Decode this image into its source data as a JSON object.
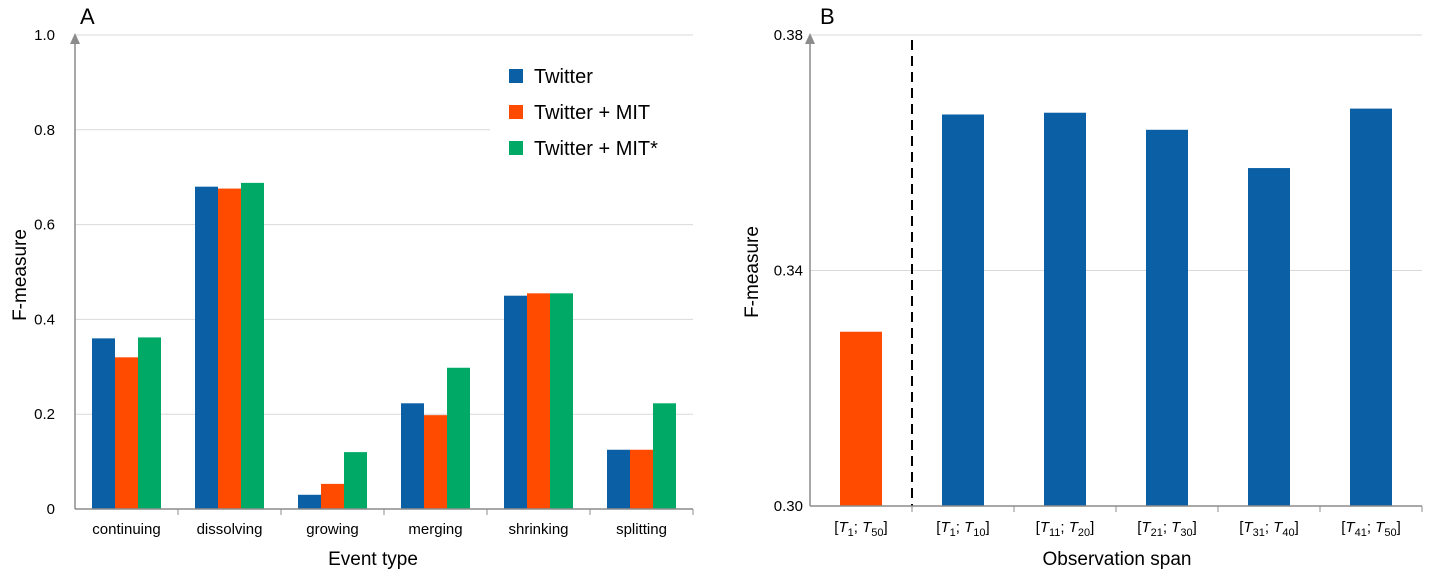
{
  "chart_data": [
    {
      "panel": "A",
      "type": "bar",
      "xlabel": "Event type",
      "ylabel": "F-measure",
      "ylim": [
        0,
        1.0
      ],
      "yticks": [
        "0",
        "0.2",
        "0.4",
        "0.6",
        "0.8",
        "1.0"
      ],
      "ytick_values": [
        0,
        0.2,
        0.4,
        0.6,
        0.8,
        1.0
      ],
      "grid": true,
      "legend": "top-right",
      "categories": [
        "continuing",
        "dissolving",
        "growing",
        "merging",
        "shrinking",
        "splitting"
      ],
      "series": [
        {
          "name": "Twitter",
          "color": "#0b5fa5",
          "values": [
            0.36,
            0.68,
            0.03,
            0.223,
            0.45,
            0.125
          ]
        },
        {
          "name": "Twitter + MIT",
          "color": "#ff4b00",
          "values": [
            0.32,
            0.676,
            0.053,
            0.198,
            0.455,
            0.125
          ]
        },
        {
          "name": "Twitter + MIT*",
          "color": "#00aa66",
          "values": [
            0.362,
            0.688,
            0.12,
            0.298,
            0.455,
            0.223
          ]
        }
      ]
    },
    {
      "panel": "B",
      "type": "bar",
      "xlabel": "Observation span",
      "ylabel": "F-measure",
      "ylim": [
        0.3,
        0.38
      ],
      "yticks": [
        "0.30",
        "0.34",
        "0.38"
      ],
      "ytick_values": [
        0.3,
        0.34,
        0.38
      ],
      "grid": true,
      "categories": [
        {
          "open": "[",
          "a": "T",
          "a_sub": "1",
          "sep": "; ",
          "b": "T",
          "b_sub": "50",
          "close": "]"
        },
        {
          "open": "[",
          "a": "T",
          "a_sub": "1",
          "sep": "; ",
          "b": "T",
          "b_sub": "10",
          "close": "]"
        },
        {
          "open": "[",
          "a": "T",
          "a_sub": "11",
          "sep": "; ",
          "b": "T",
          "b_sub": "20",
          "close": "]"
        },
        {
          "open": "[",
          "a": "T",
          "a_sub": "21",
          "sep": "; ",
          "b": "T",
          "b_sub": "30",
          "close": "]"
        },
        {
          "open": "[",
          "a": "T",
          "a_sub": "31",
          "sep": "; ",
          "b": "T",
          "b_sub": "40",
          "close": "]"
        },
        {
          "open": "[",
          "a": "T",
          "a_sub": "41",
          "sep": "; ",
          "b": "T",
          "b_sub": "50",
          "close": "]"
        }
      ],
      "values": [
        0.3296,
        0.3665,
        0.3668,
        0.3639,
        0.3574,
        0.3675
      ],
      "colors": [
        "#ff4b00",
        "#0b5fa5",
        "#0b5fa5",
        "#0b5fa5",
        "#0b5fa5",
        "#0b5fa5"
      ],
      "separator_after_index": 0
    }
  ]
}
